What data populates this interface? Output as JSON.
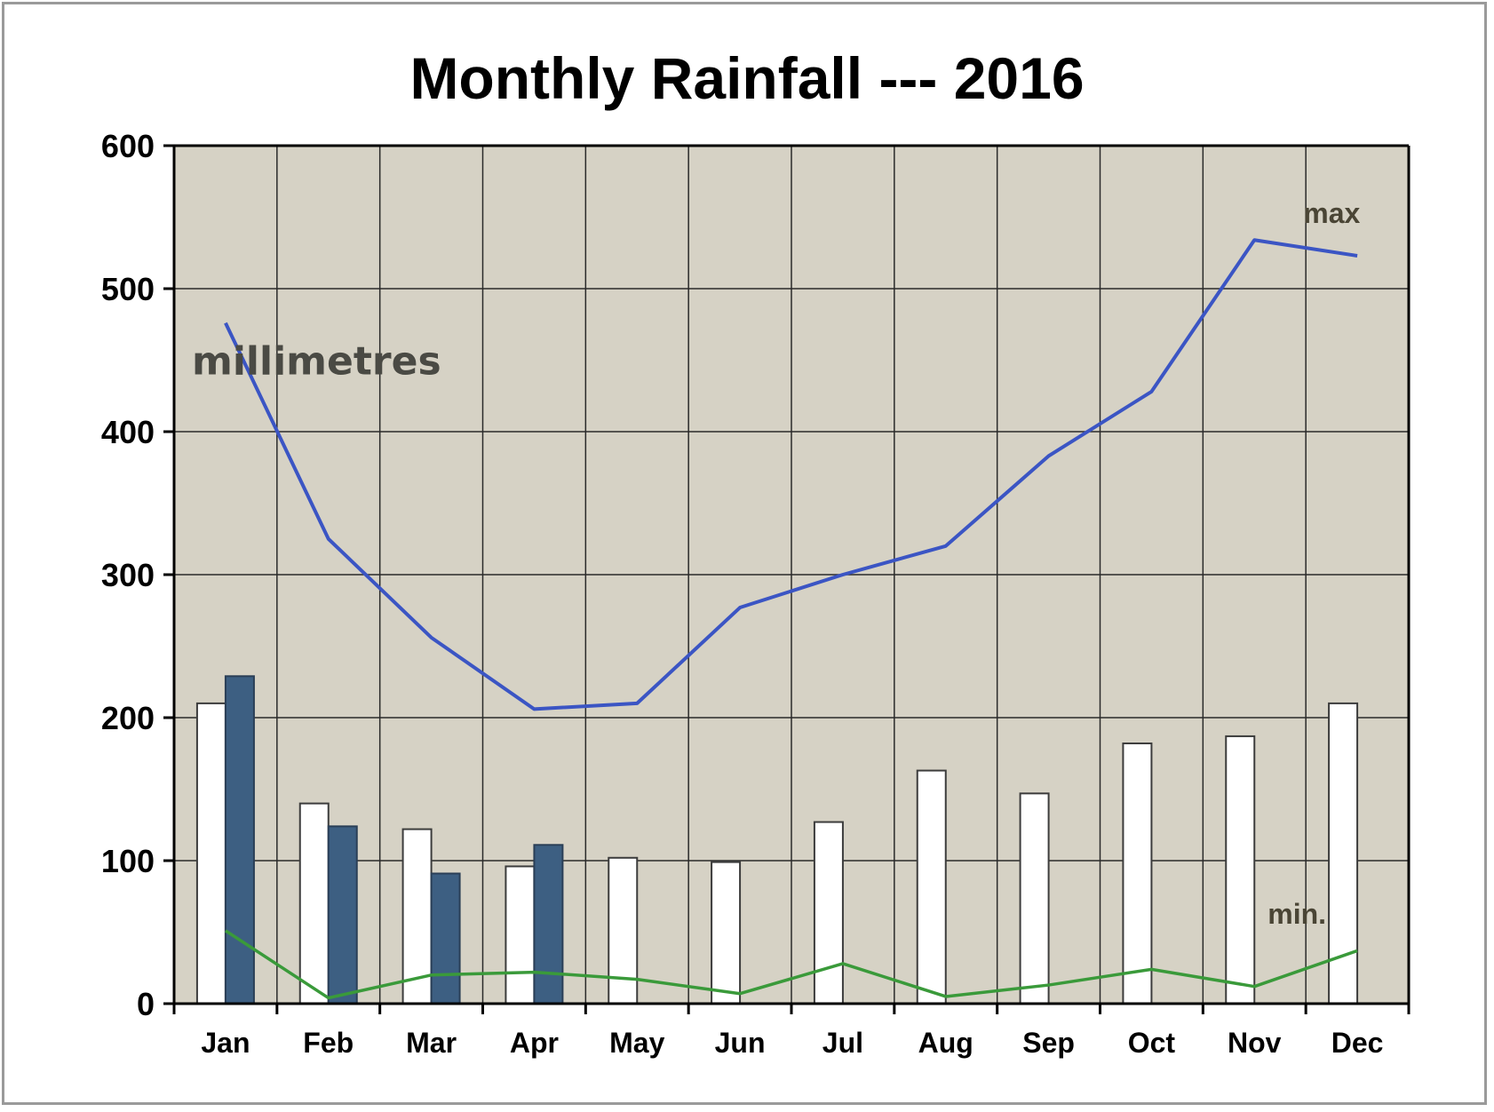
{
  "chart_data": {
    "type": "bar",
    "title": "Monthly Rainfall --- 2016",
    "unit_label": "millimetres",
    "categories": [
      "Jan",
      "Feb",
      "Mar",
      "Apr",
      "May",
      "Jun",
      "Jul",
      "Aug",
      "Sep",
      "Oct",
      "Nov",
      "Dec"
    ],
    "ylim": [
      0,
      600
    ],
    "yticks": [
      0,
      100,
      200,
      300,
      400,
      500,
      600
    ],
    "grid": true,
    "series": [
      {
        "kind": "bar",
        "color": "#ffffff",
        "values": [
          210,
          140,
          122,
          96,
          102,
          99,
          127,
          163,
          147,
          182,
          187,
          210
        ]
      },
      {
        "kind": "bar",
        "color": "#3d5f82",
        "values": [
          229,
          124,
          91,
          111,
          null,
          null,
          null,
          null,
          null,
          null,
          null,
          null
        ]
      },
      {
        "kind": "line",
        "name": "max",
        "color": "#3b55c4",
        "values": [
          476,
          325,
          256,
          206,
          210,
          277,
          300,
          320,
          383,
          428,
          534,
          523
        ]
      },
      {
        "kind": "line",
        "name": "min.",
        "color": "#3a9a3a",
        "values": [
          51,
          4,
          20,
          22,
          17,
          7,
          28,
          5,
          13,
          24,
          12,
          37
        ]
      }
    ]
  }
}
